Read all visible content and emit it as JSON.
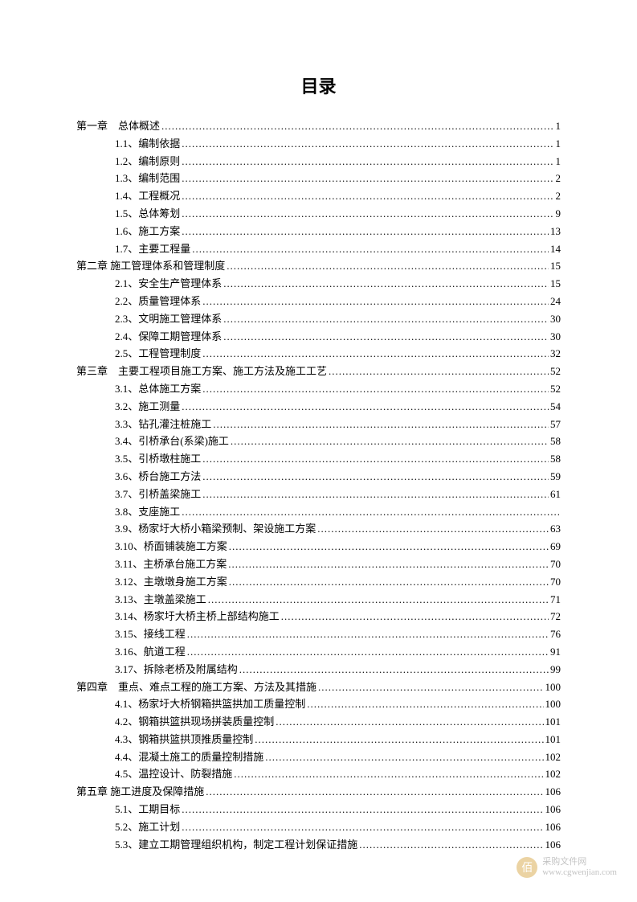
{
  "title": "目录",
  "entries": [
    {
      "level": "chapter",
      "label": "第一章　总体概述",
      "page": "1"
    },
    {
      "level": "section",
      "label": "1.1、编制依据",
      "page": "1"
    },
    {
      "level": "section",
      "label": "1.2、编制原则",
      "page": "1"
    },
    {
      "level": "section",
      "label": "1.3、编制范围",
      "page": "2"
    },
    {
      "level": "section",
      "label": "1.4、工程概况",
      "page": "2"
    },
    {
      "level": "section",
      "label": "1.5、总体筹划",
      "page": "9"
    },
    {
      "level": "section",
      "label": "1.6、施工方案",
      "page": "13"
    },
    {
      "level": "section",
      "label": "1.7、主要工程量",
      "page": "14"
    },
    {
      "level": "chapter",
      "label": "第二章  施工管理体系和管理制度",
      "page": "15"
    },
    {
      "level": "section",
      "label": "2.1、安全生产管理体系",
      "page": "15"
    },
    {
      "level": "section",
      "label": "2.2、质量管理体系",
      "page": "24"
    },
    {
      "level": "section",
      "label": "2.3、文明施工管理体系",
      "page": "30"
    },
    {
      "level": "section",
      "label": "2.4、保障工期管理体系",
      "page": "30"
    },
    {
      "level": "section",
      "label": "2.5、工程管理制度",
      "page": "32"
    },
    {
      "level": "chapter",
      "label": "第三章　主要工程项目施工方案、施工方法及施工工艺",
      "page": "52"
    },
    {
      "level": "section",
      "label": "3.1、总体施工方案",
      "page": "52"
    },
    {
      "level": "section",
      "label": "3.2、施工测量",
      "page": "54"
    },
    {
      "level": "section",
      "label": "3.3、钻孔灌注桩施工",
      "page": "57"
    },
    {
      "level": "section",
      "label": "3.4、引桥承台(系梁)施工",
      "page": "58"
    },
    {
      "level": "section",
      "label": "3.5、引桥墩柱施工",
      "page": "58"
    },
    {
      "level": "section",
      "label": "3.6、桥台施工方法",
      "page": "59"
    },
    {
      "level": "section",
      "label": "3.7、引桥盖梁施工",
      "page": "61"
    },
    {
      "level": "section",
      "label": "3.8、支座施工",
      "page": ""
    },
    {
      "level": "section",
      "label": "3.9、杨家圩大桥小箱梁预制、架设施工方案",
      "page": "63"
    },
    {
      "level": "section",
      "label": "3.10、桥面铺装施工方案",
      "page": "69"
    },
    {
      "level": "section",
      "label": "3.11、主桥承台施工方案",
      "page": "70"
    },
    {
      "level": "section",
      "label": "3.12、主墩墩身施工方案",
      "page": "70"
    },
    {
      "level": "section",
      "label": "3.13、主墩盖梁施工",
      "page": "71"
    },
    {
      "level": "section",
      "label": "3.14、杨家圩大桥主桥上部结构施工",
      "page": "72"
    },
    {
      "level": "section",
      "label": "3.15、接线工程",
      "page": "76"
    },
    {
      "level": "section",
      "label": "3.16、航道工程",
      "page": "91"
    },
    {
      "level": "section",
      "label": "3.17、拆除老桥及附属结构",
      "page": "99"
    },
    {
      "level": "chapter",
      "label": "第四章　重点、难点工程的施工方案、方法及其措施",
      "page": "100"
    },
    {
      "level": "section",
      "label": "4.1、杨家圩大桥钢箱拱篮拱加工质量控制",
      "page": "100"
    },
    {
      "level": "section",
      "label": "4.2、钢箱拱篮拱现场拼装质量控制",
      "page": "101"
    },
    {
      "level": "section",
      "label": "4.3、钢箱拱篮拱顶推质量控制",
      "page": "101"
    },
    {
      "level": "section",
      "label": "4.4、混凝土施工的质量控制措施",
      "page": "102"
    },
    {
      "level": "section",
      "label": "4.5、温控设计、防裂措施",
      "page": "102"
    },
    {
      "level": "chapter",
      "label": "第五章  施工进度及保障措施",
      "page": "106"
    },
    {
      "level": "section",
      "label": "5.1、工期目标",
      "page": "106"
    },
    {
      "level": "section",
      "label": "5.2、施工计划",
      "page": "106"
    },
    {
      "level": "section",
      "label": "5.3、建立工期管理组织机构，制定工程计划保证措施",
      "page": "106"
    }
  ],
  "watermark": {
    "logo": "佰",
    "text1": "采购文件网",
    "text2": "www.cgwenjian.com"
  }
}
